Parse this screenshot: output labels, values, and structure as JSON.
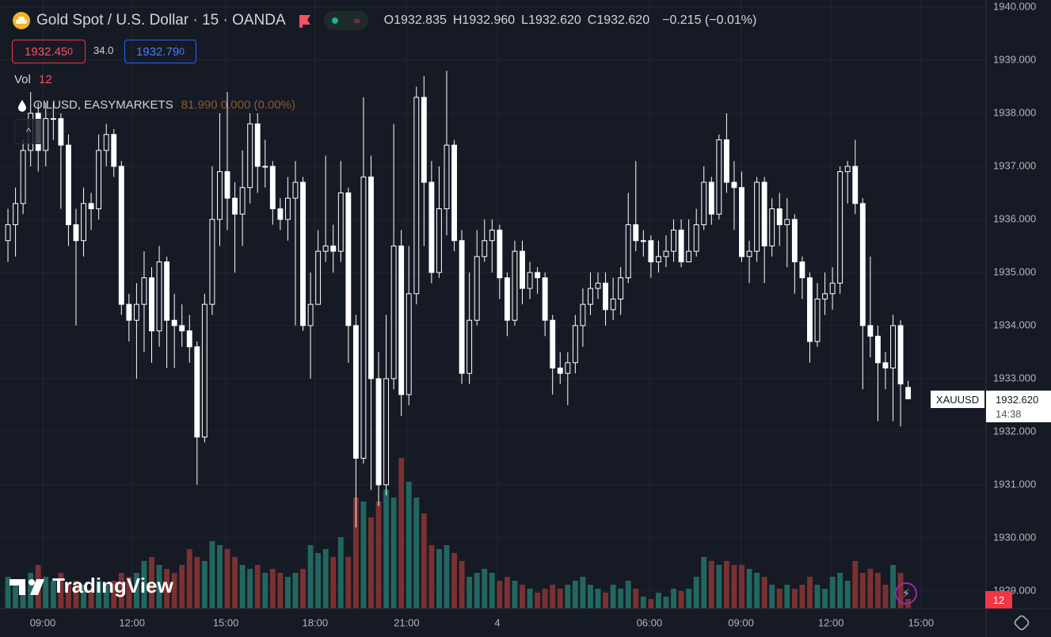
{
  "chart_data": {
    "type": "candlestick",
    "symbol_title": "Gold Spot / U.S. Dollar · 15 · OANDA",
    "ohlc_legend": [
      {
        "label": "O",
        "value": "1932.835"
      },
      {
        "label": "H",
        "value": "1932.960"
      },
      {
        "label": "L",
        "value": "1932.620"
      },
      {
        "label": "C",
        "value": "1932.620"
      }
    ],
    "change": "−0.215 (−0.01%)",
    "sell_price": "1932.45",
    "sell_price_tail": "0",
    "spread": "34.0",
    "buy_price": "1932.79",
    "buy_price_tail": "0",
    "volume_label": "Vol",
    "overlay_symbol": "OILUSD, EASYMARKETS",
    "overlay_values": "81.990 0.000 (0.00%)",
    "price_tag_symbol": "XAUUSD",
    "price_tag_value": "1932.620",
    "price_tag_countdown": "14:38",
    "brand": "TradingView",
    "open": [
      1935.6,
      1935.9,
      1936.3,
      1937.3,
      1938.0,
      1937.3,
      1937.9,
      1937.9,
      1937.4,
      1935.9,
      1935.6,
      1936.3,
      1936.2,
      1937.3,
      1937.6,
      1937.0,
      1934.4,
      1934.1,
      1934.4,
      1934.9,
      1933.9,
      1935.2,
      1934.1,
      1934.0,
      1933.9,
      1933.6,
      1931.9,
      1934.4,
      1936.0,
      1936.9,
      1936.4,
      1936.1,
      1936.6,
      1937.8,
      1937.0,
      1937.0,
      1936.2,
      1936.0,
      1936.4,
      1936.7,
      1934.0,
      1934.4,
      1935.4,
      1935.5,
      1935.4,
      1936.5,
      1934.0,
      1931.5,
      1936.8,
      1933.0,
      1931.0,
      1933.0,
      1935.5,
      1932.7,
      1934.6,
      1938.3,
      1936.7,
      1935.0,
      1936.2,
      1937.4,
      1935.6,
      1933.1,
      1934.1,
      1935.3,
      1935.6,
      1935.8,
      1934.9,
      1934.1,
      1935.4,
      1934.7,
      1935.0,
      1934.9,
      1934.1,
      1933.2,
      1933.1,
      1933.3,
      1934.0,
      1934.4,
      1934.7,
      1934.8,
      1934.3,
      1934.5,
      1934.9,
      1935.9,
      1935.6,
      1935.6,
      1935.2,
      1935.3,
      1935.4,
      1935.8,
      1935.2,
      1935.4,
      1935.9,
      1936.7,
      1936.1,
      1937.5,
      1936.7,
      1936.6,
      1935.3,
      1935.4,
      1936.7,
      1935.5,
      1936.2,
      1935.9,
      1936.0,
      1935.2,
      1934.9,
      1933.7,
      1934.5,
      1934.6,
      1934.8,
      1936.9,
      1937.0,
      1936.3,
      1934.0,
      1933.8,
      1933.3,
      1933.2,
      1934.0,
      1932.835
    ],
    "high": [
      1936.2,
      1936.6,
      1937.5,
      1938.4,
      1938.2,
      1938.2,
      1938.2,
      1938.0,
      1937.6,
      1936.2,
      1936.6,
      1936.5,
      1937.6,
      1937.8,
      1937.7,
      1937.1,
      1934.6,
      1934.8,
      1935.4,
      1935.1,
      1935.5,
      1935.3,
      1934.6,
      1934.4,
      1934.2,
      1933.7,
      1934.6,
      1937.0,
      1938.0,
      1938.4,
      1936.7,
      1937.3,
      1938.0,
      1938.0,
      1937.5,
      1937.1,
      1936.4,
      1936.8,
      1937.1,
      1936.8,
      1935.0,
      1935.8,
      1937.2,
      1935.9,
      1937.1,
      1936.6,
      1934.2,
      1938.3,
      1937.2,
      1933.5,
      1934.2,
      1937.8,
      1935.8,
      1935.5,
      1938.5,
      1938.7,
      1937.1,
      1937.0,
      1938.8,
      1937.5,
      1935.8,
      1935.0,
      1935.8,
      1936.0,
      1936.0,
      1935.9,
      1935.0,
      1935.6,
      1935.6,
      1935.2,
      1935.1,
      1935.0,
      1934.2,
      1933.5,
      1933.5,
      1934.2,
      1934.7,
      1935.0,
      1935.0,
      1935.0,
      1934.9,
      1935.1,
      1936.5,
      1937.1,
      1935.8,
      1935.7,
      1935.6,
      1935.7,
      1936.0,
      1936.0,
      1936.0,
      1936.2,
      1937.0,
      1936.8,
      1937.6,
      1938.0,
      1937.1,
      1936.9,
      1935.6,
      1936.8,
      1936.8,
      1936.4,
      1936.5,
      1936.4,
      1936.1,
      1935.3,
      1935.0,
      1934.8,
      1935.0,
      1935.1,
      1937.0,
      1937.1,
      1937.5,
      1936.4,
      1935.3,
      1934.0,
      1933.5,
      1934.2,
      1934.1,
      1932.96
    ],
    "low": [
      1935.2,
      1935.3,
      1936.1,
      1937.0,
      1936.9,
      1937.0,
      1937.5,
      1936.2,
      1935.5,
      1934.0,
      1935.3,
      1935.8,
      1936.0,
      1937.0,
      1936.8,
      1934.2,
      1933.7,
      1933.0,
      1933.5,
      1933.3,
      1933.6,
      1933.2,
      1933.2,
      1933.6,
      1933.3,
      1931.0,
      1931.8,
      1934.2,
      1935.5,
      1935.8,
      1935.0,
      1935.5,
      1936.3,
      1936.5,
      1936.6,
      1935.9,
      1935.8,
      1935.6,
      1934.0,
      1933.9,
      1933.0,
      1934.4,
      1935.2,
      1935.0,
      1935.2,
      1933.3,
      1930.2,
      1931.4,
      1930.9,
      1930.6,
      1930.8,
      1932.8,
      1932.3,
      1932.5,
      1934.4,
      1935.5,
      1934.8,
      1934.9,
      1935.7,
      1935.4,
      1932.9,
      1932.9,
      1934.0,
      1935.2,
      1935.0,
      1934.5,
      1933.8,
      1934.0,
      1934.4,
      1934.5,
      1934.6,
      1933.8,
      1932.7,
      1932.9,
      1932.5,
      1933.1,
      1933.6,
      1934.2,
      1934.5,
      1934.0,
      1934.1,
      1934.2,
      1934.8,
      1935.4,
      1935.3,
      1934.9,
      1935.0,
      1935.1,
      1935.2,
      1935.1,
      1935.2,
      1935.3,
      1935.8,
      1935.9,
      1936.0,
      1936.5,
      1935.8,
      1935.2,
      1934.8,
      1935.2,
      1934.8,
      1935.3,
      1935.5,
      1935.1,
      1934.6,
      1934.5,
      1933.3,
      1933.6,
      1934.2,
      1934.3,
      1934.6,
      1936.3,
      1936.1,
      1932.8,
      1933.4,
      1932.2,
      1932.8,
      1932.2,
      1932.1,
      1932.62
    ],
    "close": [
      1935.9,
      1936.3,
      1937.3,
      1938.0,
      1937.3,
      1937.9,
      1937.9,
      1937.4,
      1935.9,
      1935.6,
      1936.3,
      1936.2,
      1937.3,
      1937.6,
      1937.0,
      1934.4,
      1934.1,
      1934.4,
      1934.9,
      1933.9,
      1935.2,
      1934.1,
      1934.0,
      1933.9,
      1933.6,
      1931.9,
      1934.4,
      1936.0,
      1936.9,
      1936.4,
      1936.1,
      1936.6,
      1937.8,
      1937.0,
      1937.0,
      1936.2,
      1936.0,
      1936.4,
      1936.7,
      1934.0,
      1934.4,
      1935.4,
      1935.5,
      1935.4,
      1936.5,
      1934.0,
      1931.5,
      1936.8,
      1933.0,
      1931.0,
      1933.0,
      1935.5,
      1932.7,
      1934.6,
      1938.3,
      1936.7,
      1935.0,
      1936.2,
      1937.4,
      1935.6,
      1933.1,
      1934.1,
      1935.3,
      1935.6,
      1935.8,
      1934.9,
      1934.1,
      1935.4,
      1934.7,
      1935.0,
      1934.9,
      1934.1,
      1933.2,
      1933.1,
      1933.3,
      1934.0,
      1934.4,
      1934.7,
      1934.8,
      1934.3,
      1934.5,
      1934.9,
      1935.9,
      1935.6,
      1935.6,
      1935.2,
      1935.3,
      1935.4,
      1935.8,
      1935.2,
      1935.4,
      1935.9,
      1936.7,
      1936.1,
      1937.5,
      1936.7,
      1936.6,
      1935.3,
      1935.4,
      1936.7,
      1935.5,
      1936.2,
      1935.9,
      1936.0,
      1935.2,
      1934.9,
      1933.7,
      1934.5,
      1934.6,
      1934.8,
      1936.9,
      1937.0,
      1936.3,
      1934.0,
      1933.8,
      1933.3,
      1933.2,
      1934.0,
      1932.9,
      1932.62
    ],
    "volume": [
      40,
      35,
      30,
      45,
      55,
      40,
      35,
      45,
      30,
      35,
      30,
      25,
      35,
      30,
      35,
      45,
      40,
      45,
      60,
      65,
      55,
      50,
      45,
      55,
      75,
      65,
      60,
      85,
      80,
      75,
      65,
      55,
      50,
      55,
      45,
      50,
      45,
      40,
      45,
      50,
      80,
      70,
      75,
      65,
      90,
      65,
      140,
      135,
      115,
      135,
      150,
      140,
      190,
      160,
      140,
      120,
      80,
      75,
      80,
      70,
      60,
      40,
      45,
      50,
      45,
      35,
      40,
      35,
      30,
      25,
      20,
      25,
      30,
      25,
      30,
      35,
      40,
      30,
      25,
      20,
      30,
      25,
      35,
      25,
      15,
      12,
      20,
      15,
      25,
      22,
      25,
      40,
      65,
      60,
      55,
      60,
      55,
      55,
      50,
      45,
      40,
      30,
      25,
      30,
      25,
      30,
      40,
      30,
      25,
      40,
      45,
      35,
      60,
      45,
      50,
      45,
      30,
      55,
      45,
      12
    ],
    "xlim": [
      -1.05,
      129.3
    ],
    "ylim": [
      1928.67,
      1940.134
    ],
    "yticks": [
      {
        "value": 1929,
        "label": "1929.000"
      },
      {
        "value": 1930,
        "label": "1930.000"
      },
      {
        "value": 1931,
        "label": "1931.000"
      },
      {
        "value": 1932,
        "label": "1932.000"
      },
      {
        "value": 1933,
        "label": "1933.000"
      },
      {
        "value": 1934,
        "label": "1934.000"
      },
      {
        "value": 1935,
        "label": "1935.000"
      },
      {
        "value": 1936,
        "label": "1936.000"
      },
      {
        "value": 1937,
        "label": "1937.000"
      },
      {
        "value": 1938,
        "label": "1938.000"
      },
      {
        "value": 1939,
        "label": "1939.000"
      },
      {
        "value": 1940,
        "label": "1940.000"
      }
    ],
    "xticks": [
      {
        "value": 4.6,
        "label": "09:00"
      },
      {
        "value": 16.4,
        "label": "12:00"
      },
      {
        "value": 28.8,
        "label": "15:00"
      },
      {
        "value": 40.6,
        "label": "18:00"
      },
      {
        "value": 52.7,
        "label": "21:00"
      },
      {
        "value": 64.7,
        "label": "4"
      },
      {
        "value": 84.8,
        "label": "06:00"
      },
      {
        "value": 96.9,
        "label": "09:00"
      },
      {
        "value": 108.8,
        "label": "12:00"
      },
      {
        "value": 120.7,
        "label": "15:00"
      }
    ],
    "grid": true,
    "colors": {
      "candle": "#ffffff",
      "volume_up": "#22675f",
      "volume_down": "#7b3131",
      "background": "#161a25",
      "grid": "#222631"
    }
  }
}
